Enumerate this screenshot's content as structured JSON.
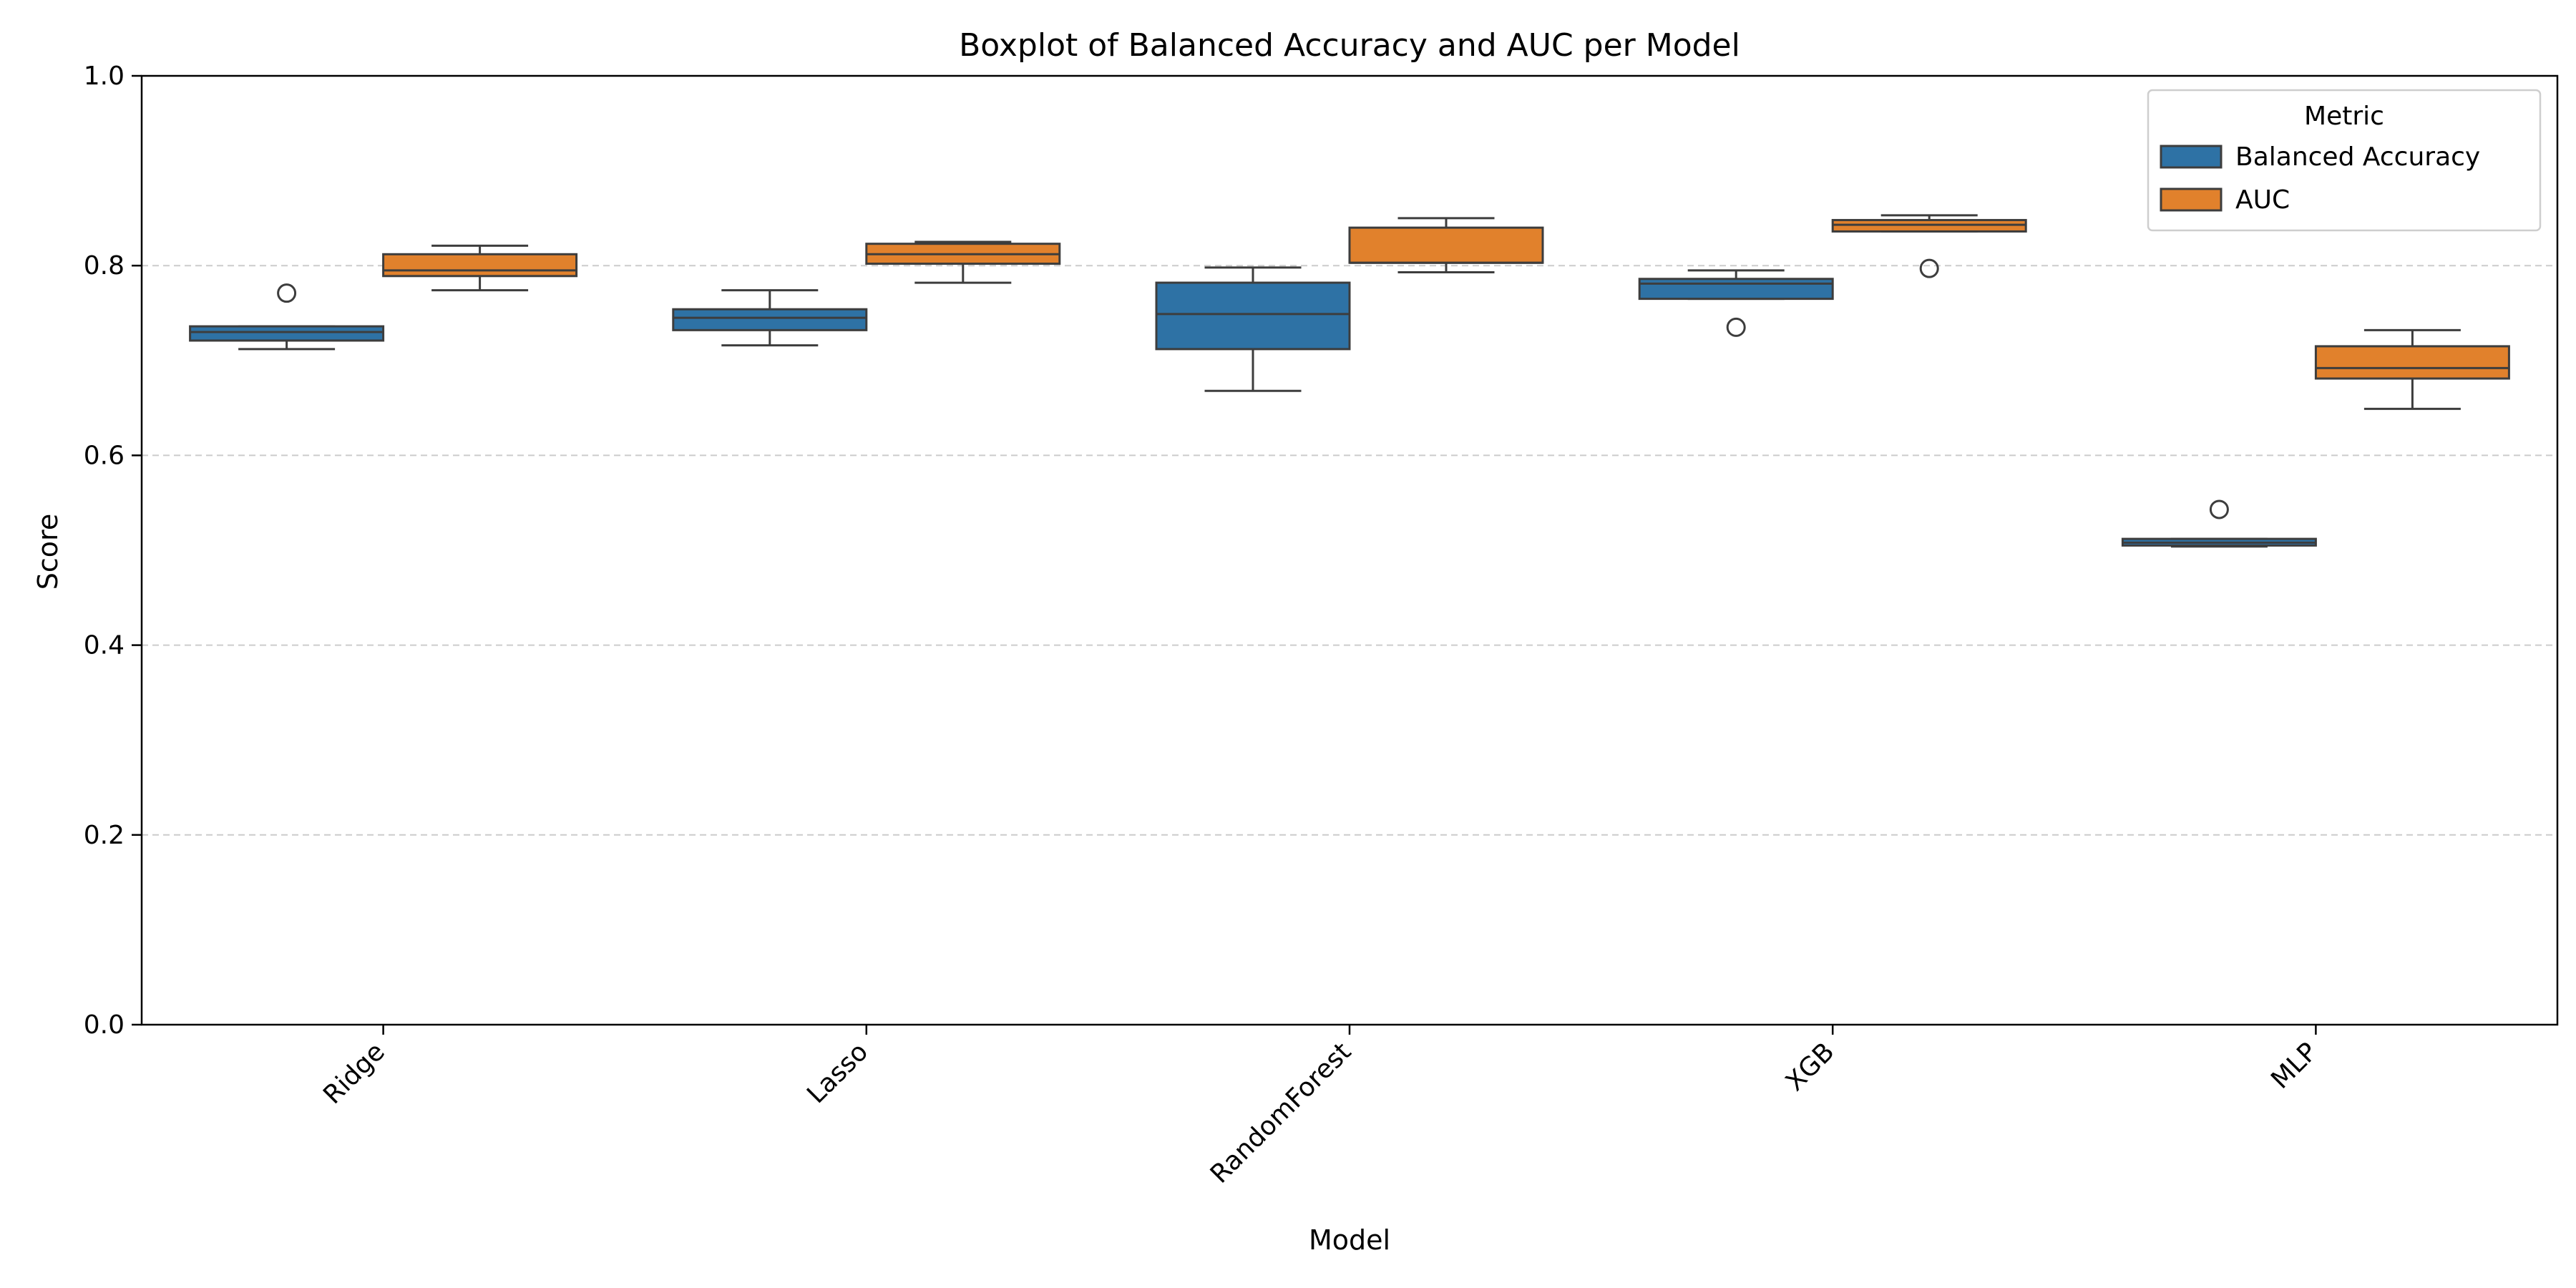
{
  "chart_data": {
    "type": "boxplot",
    "title": "Boxplot of Balanced Accuracy and AUC per Model",
    "xlabel": "Model",
    "ylabel": "Score",
    "ylim": [
      0.0,
      1.0
    ],
    "yticks": [
      "0.0",
      "0.2",
      "0.4",
      "0.6",
      "0.8",
      "1.0"
    ],
    "grid": "horizontal dashed",
    "categories": [
      "Ridge",
      "Lasso",
      "RandomForest",
      "XGB",
      "MLP"
    ],
    "legend": {
      "title": "Metric",
      "placement": "top-right"
    },
    "series": [
      {
        "name": "Balanced Accuracy",
        "color": "#2e72a5",
        "boxes": [
          {
            "whisker_low": 0.712,
            "q1": 0.721,
            "median": 0.73,
            "q3": 0.736,
            "whisker_high": 0.736,
            "outliers": [
              0.771
            ]
          },
          {
            "whisker_low": 0.716,
            "q1": 0.732,
            "median": 0.745,
            "q3": 0.754,
            "whisker_high": 0.774,
            "outliers": []
          },
          {
            "whisker_low": 0.668,
            "q1": 0.712,
            "median": 0.749,
            "q3": 0.782,
            "whisker_high": 0.798,
            "outliers": []
          },
          {
            "whisker_low": 0.765,
            "q1": 0.765,
            "median": 0.781,
            "q3": 0.786,
            "whisker_high": 0.795,
            "outliers": [
              0.735
            ]
          },
          {
            "whisker_low": 0.504,
            "q1": 0.505,
            "median": 0.508,
            "q3": 0.512,
            "whisker_high": 0.512,
            "outliers": [
              0.543
            ]
          }
        ]
      },
      {
        "name": "AUC",
        "color": "#e1812c",
        "boxes": [
          {
            "whisker_low": 0.774,
            "q1": 0.789,
            "median": 0.795,
            "q3": 0.812,
            "whisker_high": 0.821,
            "outliers": []
          },
          {
            "whisker_low": 0.782,
            "q1": 0.802,
            "median": 0.812,
            "q3": 0.823,
            "whisker_high": 0.825,
            "outliers": []
          },
          {
            "whisker_low": 0.793,
            "q1": 0.803,
            "median": 0.803,
            "q3": 0.84,
            "whisker_high": 0.85,
            "outliers": []
          },
          {
            "whisker_low": 0.836,
            "q1": 0.836,
            "median": 0.843,
            "q3": 0.848,
            "whisker_high": 0.853,
            "outliers": [
              0.797
            ]
          },
          {
            "whisker_low": 0.649,
            "q1": 0.681,
            "median": 0.692,
            "q3": 0.715,
            "whisker_high": 0.732,
            "outliers": []
          }
        ]
      }
    ]
  }
}
